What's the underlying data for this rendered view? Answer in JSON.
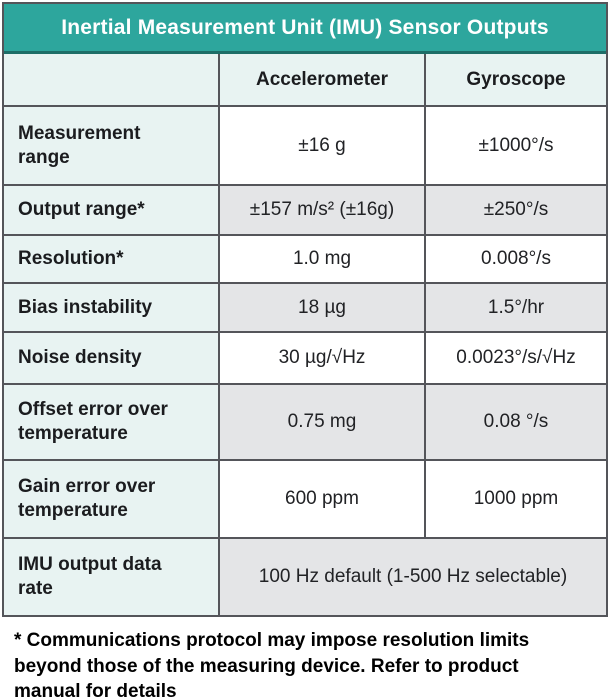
{
  "table": {
    "title": "Inertial Measurement Unit (IMU) Sensor Outputs",
    "col_headers": [
      "Accelerometer",
      "Gyroscope"
    ],
    "rows": [
      {
        "label": "Measurement range",
        "accel": "±16 g",
        "gyro": "±1000°/s",
        "shaded": false
      },
      {
        "label": "Output range*",
        "accel": "±157 m/s² (±16g)",
        "gyro": "±250°/s",
        "shaded": true
      },
      {
        "label": "Resolution*",
        "accel": "1.0 mg",
        "gyro": "0.008°/s",
        "shaded": false
      },
      {
        "label": "Bias instability",
        "accel": "18 µg",
        "gyro": "1.5°/hr",
        "shaded": true
      },
      {
        "label": "Noise density",
        "accel": "30 µg/√Hz",
        "gyro": "0.0023°/s/√Hz",
        "shaded": false
      },
      {
        "label": "Offset error over temperature",
        "accel": "0.75 mg",
        "gyro": "0.08 °/s",
        "shaded": true
      },
      {
        "label": "Gain error over temperature",
        "accel": "600 ppm",
        "gyro": "1000 ppm",
        "shaded": false
      },
      {
        "label": "IMU output data rate",
        "merged": "100 Hz default (1-500 Hz selectable)",
        "shaded": true
      }
    ],
    "footnote": "* Communications protocol may impose resolution limits beyond those of the measuring device. Refer to product manual for details"
  },
  "colors": {
    "teal": "#2DA69D",
    "teal_dark": "#1E6E68",
    "label_column_bg": "#E8F3F2",
    "shaded_row_bg": "#E4E5E7",
    "grid_border": "#54555A",
    "title_text": "#FFFFFF",
    "body_text": "#1B1C1F"
  },
  "chart_data": {
    "type": "table",
    "title": "Inertial Measurement Unit (IMU) Sensor Outputs",
    "columns": [
      "",
      "Accelerometer",
      "Gyroscope"
    ],
    "rows": [
      [
        "Measurement range",
        "±16 g",
        "±1000°/s"
      ],
      [
        "Output range*",
        "±157 m/s² (±16g)",
        "±250°/s"
      ],
      [
        "Resolution*",
        "1.0 mg",
        "0.008°/s"
      ],
      [
        "Bias instability",
        "18 µg",
        "1.5°/hr"
      ],
      [
        "Noise density",
        "30 µg/√Hz",
        "0.0023°/s/√Hz"
      ],
      [
        "Offset error over temperature",
        "0.75 mg",
        "0.08 °/s"
      ],
      [
        "Gain error over temperature",
        "600 ppm",
        "1000 ppm"
      ],
      [
        "IMU output data rate",
        "100 Hz default (1-500 Hz selectable)",
        "100 Hz default (1-500 Hz selectable)"
      ]
    ],
    "footnote": "* Communications protocol may impose resolution limits beyond those of the measuring device. Refer to product manual for details",
    "layout_hints": {
      "shaded_rows": [
        1,
        3,
        5,
        7
      ],
      "last_row_merged": true
    }
  }
}
